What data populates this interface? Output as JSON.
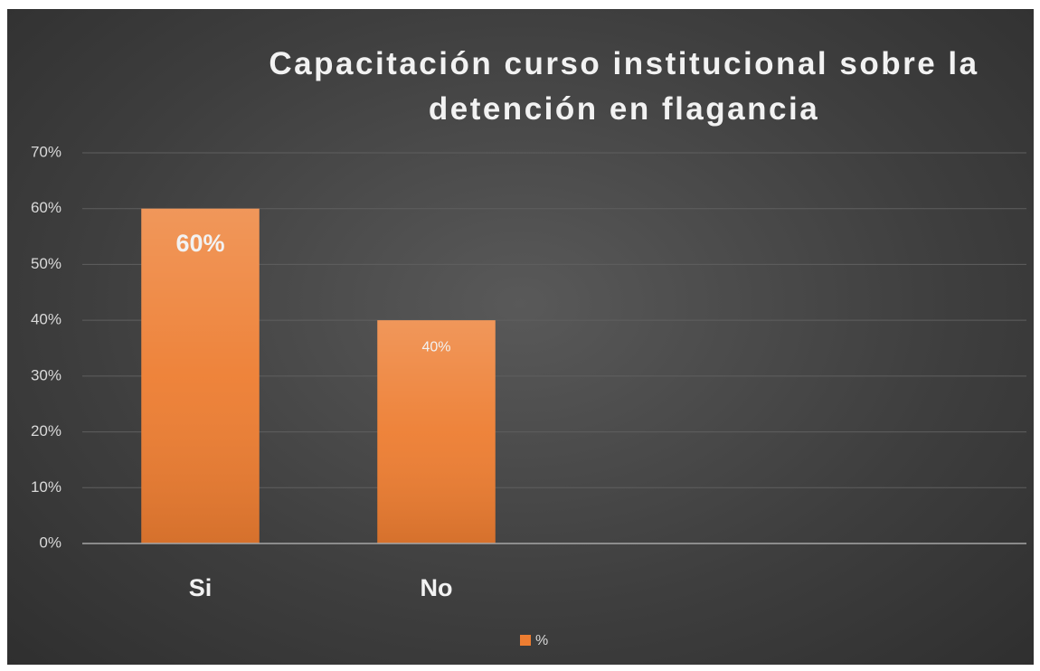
{
  "chart_data": {
    "type": "bar",
    "title": "Capacitación curso institucional sobre la detención en flagancia",
    "categories": [
      "Si",
      "No",
      null,
      null
    ],
    "series": [
      {
        "name": "%",
        "color": "#ed7d31",
        "values": [
          60,
          40,
          null,
          null
        ],
        "value_labels": [
          "60%",
          "40%",
          null,
          null
        ]
      }
    ],
    "ylim": [
      0,
      70
    ],
    "yticks": [
      {
        "value": 0,
        "label": "0%"
      },
      {
        "value": 10,
        "label": "10%"
      },
      {
        "value": 20,
        "label": "20%"
      },
      {
        "value": 30,
        "label": "30%"
      },
      {
        "value": 40,
        "label": "40%"
      },
      {
        "value": 50,
        "label": "50%"
      },
      {
        "value": 60,
        "label": "60%"
      },
      {
        "value": 70,
        "label": "70%"
      }
    ],
    "grid": true,
    "legend": "bottom"
  }
}
